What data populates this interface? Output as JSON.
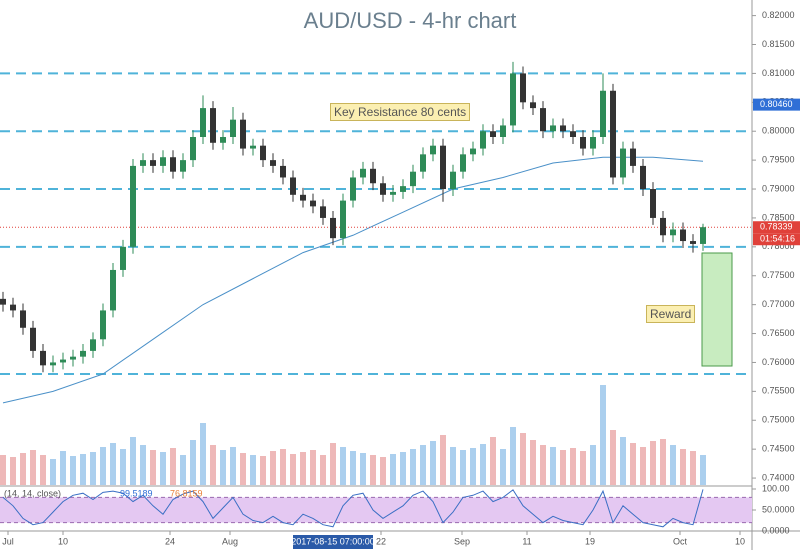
{
  "chart_data": {
    "type": "candlestick",
    "title": "AUD/USD - 4-hr chart",
    "candles": [
      [
        0.771,
        0.7722,
        0.7688,
        0.77
      ],
      [
        0.77,
        0.7712,
        0.7678,
        0.769
      ],
      [
        0.769,
        0.7702,
        0.7648,
        0.766
      ],
      [
        0.766,
        0.7672,
        0.7608,
        0.762
      ],
      [
        0.762,
        0.7632,
        0.7583,
        0.7595
      ],
      [
        0.7595,
        0.7612,
        0.7583,
        0.76
      ],
      [
        0.76,
        0.7617,
        0.7588,
        0.7605
      ],
      [
        0.7605,
        0.7622,
        0.7593,
        0.761
      ],
      [
        0.761,
        0.7632,
        0.7598,
        0.762
      ],
      [
        0.762,
        0.7652,
        0.7608,
        0.764
      ],
      [
        0.764,
        0.7702,
        0.7628,
        0.769
      ],
      [
        0.769,
        0.7772,
        0.7678,
        0.776
      ],
      [
        0.776,
        0.7812,
        0.7748,
        0.78
      ],
      [
        0.78,
        0.7952,
        0.7788,
        0.794
      ],
      [
        0.794,
        0.7962,
        0.7928,
        0.795
      ],
      [
        0.795,
        0.7962,
        0.7928,
        0.794
      ],
      [
        0.794,
        0.7967,
        0.7928,
        0.7955
      ],
      [
        0.7955,
        0.7967,
        0.7918,
        0.793
      ],
      [
        0.793,
        0.7962,
        0.7918,
        0.795
      ],
      [
        0.795,
        0.8002,
        0.7938,
        0.799
      ],
      [
        0.799,
        0.8062,
        0.7978,
        0.804
      ],
      [
        0.804,
        0.8052,
        0.7968,
        0.798
      ],
      [
        0.798,
        0.8002,
        0.7968,
        0.799
      ],
      [
        0.799,
        0.8042,
        0.7978,
        0.802
      ],
      [
        0.802,
        0.8032,
        0.7958,
        0.797
      ],
      [
        0.797,
        0.7987,
        0.7958,
        0.7975
      ],
      [
        0.7975,
        0.7987,
        0.7938,
        0.795
      ],
      [
        0.795,
        0.7962,
        0.7928,
        0.794
      ],
      [
        0.794,
        0.7952,
        0.7908,
        0.792
      ],
      [
        0.792,
        0.7932,
        0.7878,
        0.789
      ],
      [
        0.789,
        0.7902,
        0.7868,
        0.788
      ],
      [
        0.788,
        0.7892,
        0.7858,
        0.787
      ],
      [
        0.787,
        0.7882,
        0.7838,
        0.785
      ],
      [
        0.785,
        0.7862,
        0.7803,
        0.7815
      ],
      [
        0.7815,
        0.7892,
        0.7803,
        0.788
      ],
      [
        0.788,
        0.7932,
        0.7868,
        0.792
      ],
      [
        0.792,
        0.7947,
        0.7908,
        0.7935
      ],
      [
        0.7935,
        0.7947,
        0.7898,
        0.791
      ],
      [
        0.791,
        0.7922,
        0.7878,
        0.789
      ],
      [
        0.789,
        0.7907,
        0.7878,
        0.7895
      ],
      [
        0.7895,
        0.7917,
        0.7883,
        0.7905
      ],
      [
        0.7905,
        0.7942,
        0.7893,
        0.793
      ],
      [
        0.793,
        0.7972,
        0.7918,
        0.796
      ],
      [
        0.796,
        0.7987,
        0.7948,
        0.7975
      ],
      [
        0.7975,
        0.7987,
        0.7878,
        0.79
      ],
      [
        0.79,
        0.7942,
        0.7888,
        0.793
      ],
      [
        0.793,
        0.7972,
        0.7918,
        0.796
      ],
      [
        0.796,
        0.7982,
        0.7948,
        0.797
      ],
      [
        0.797,
        0.8012,
        0.7958,
        0.8
      ],
      [
        0.8,
        0.8012,
        0.7978,
        0.799
      ],
      [
        0.799,
        0.8022,
        0.7978,
        0.801
      ],
      [
        0.801,
        0.812,
        0.7998,
        0.81
      ],
      [
        0.81,
        0.8112,
        0.8038,
        0.805
      ],
      [
        0.805,
        0.8062,
        0.8028,
        0.804
      ],
      [
        0.804,
        0.8052,
        0.7988,
        0.8
      ],
      [
        0.8,
        0.8022,
        0.7988,
        0.801
      ],
      [
        0.801,
        0.8022,
        0.7988,
        0.8
      ],
      [
        0.8,
        0.8012,
        0.7978,
        0.799
      ],
      [
        0.799,
        0.8002,
        0.7958,
        0.797
      ],
      [
        0.797,
        0.8002,
        0.7958,
        0.799
      ],
      [
        0.799,
        0.81,
        0.7978,
        0.807
      ],
      [
        0.807,
        0.8082,
        0.7908,
        0.792
      ],
      [
        0.792,
        0.7982,
        0.7908,
        0.797
      ],
      [
        0.797,
        0.7982,
        0.7928,
        0.794
      ],
      [
        0.794,
        0.7952,
        0.7888,
        0.79
      ],
      [
        0.79,
        0.7912,
        0.7838,
        0.785
      ],
      [
        0.785,
        0.7862,
        0.7808,
        0.782
      ],
      [
        0.782,
        0.7842,
        0.7808,
        0.783
      ],
      [
        0.783,
        0.7842,
        0.7798,
        0.781
      ],
      [
        0.781,
        0.7822,
        0.779,
        0.7805
      ],
      [
        0.7805,
        0.784,
        0.7793,
        0.7834
      ]
    ],
    "up_color": "#2e8b57",
    "down_color": "#333333",
    "xlim": [
      -0.3,
      74.9
    ],
    "xticks": [
      {
        "value": 0.5,
        "label": "Jul"
      },
      {
        "value": 6,
        "label": "10"
      },
      {
        "value": 16.7,
        "label": "24"
      },
      {
        "value": 22.7,
        "label": "Aug"
      },
      {
        "value": 37.8,
        "label": "22"
      },
      {
        "value": 45.9,
        "label": "Sep"
      },
      {
        "value": 52.4,
        "label": "11"
      },
      {
        "value": 58.7,
        "label": "19"
      },
      {
        "value": 67.7,
        "label": "Oct"
      },
      {
        "value": 73.7,
        "label": "10"
      }
    ],
    "crosshair_x": {
      "value": 33,
      "label": "2017-08-15 07:00:00"
    },
    "ylim": [
      0.7388,
      0.8227
    ],
    "yticks": [
      {
        "value": 0.74,
        "label": "0.74000"
      },
      {
        "value": 0.745,
        "label": "0.74500"
      },
      {
        "value": 0.75,
        "label": "0.75000"
      },
      {
        "value": 0.755,
        "label": "0.75500"
      },
      {
        "value": 0.76,
        "label": "0.76000"
      },
      {
        "value": 0.765,
        "label": "0.76500"
      },
      {
        "value": 0.77,
        "label": "0.77000"
      },
      {
        "value": 0.775,
        "label": "0.77500"
      },
      {
        "value": 0.78,
        "label": "0.78000"
      },
      {
        "value": 0.785,
        "label": "0.78500"
      },
      {
        "value": 0.79,
        "label": "0.79000"
      },
      {
        "value": 0.795,
        "label": "0.79500"
      },
      {
        "value": 0.8,
        "label": "0.80000"
      },
      {
        "value": 0.805,
        "label": "0.80500"
      },
      {
        "value": 0.81,
        "label": "0.81000"
      },
      {
        "value": 0.815,
        "label": "0.81500"
      },
      {
        "value": 0.82,
        "label": "0.82000"
      }
    ],
    "levels": [
      0.81,
      0.8,
      0.79,
      0.78,
      0.758
    ],
    "level_color": "#4fb3d9",
    "price_labels": [
      {
        "value": 0.8046,
        "label": "0.80460",
        "color": "#2f6fd6"
      },
      {
        "value": 0.78339,
        "label": "0.78339",
        "color": "#e0413a"
      }
    ],
    "countdown": "01:54:16",
    "ma": {
      "color": "#4a90c8",
      "x": [
        0,
        5,
        10,
        15,
        20,
        25,
        30,
        35,
        40,
        45,
        50,
        55,
        60,
        65,
        70
      ],
      "values": [
        0.753,
        0.755,
        0.758,
        0.764,
        0.77,
        0.7745,
        0.779,
        0.782,
        0.786,
        0.79,
        0.792,
        0.7945,
        0.7955,
        0.7955,
        0.7948
      ]
    },
    "volume": {
      "ylim": [
        0,
        150
      ],
      "values": [
        30,
        28,
        32,
        35,
        30,
        26,
        34,
        29,
        31,
        33,
        38,
        42,
        36,
        48,
        40,
        35,
        33,
        37,
        30,
        45,
        62,
        40,
        35,
        38,
        32,
        30,
        29,
        34,
        36,
        31,
        33,
        35,
        30,
        42,
        38,
        34,
        32,
        30,
        28,
        31,
        33,
        36,
        40,
        44,
        50,
        38,
        35,
        37,
        41,
        48,
        36,
        58,
        52,
        45,
        40,
        38,
        35,
        37,
        34,
        40,
        100,
        55,
        48,
        42,
        38,
        44,
        46,
        40,
        36,
        34,
        30
      ]
    },
    "oscillator": {
      "label": "(14, 14, close)",
      "readouts": [
        {
          "text": "99.5189",
          "color": "#2f6fd6"
        },
        {
          "text": "76.8159",
          "color": "#e8803a"
        }
      ],
      "ylim": [
        0,
        100
      ],
      "yticks": [
        {
          "value": 100,
          "label": "100.00"
        },
        {
          "value": 50,
          "label": "50.0000"
        },
        {
          "value": 0,
          "label": "0.0000"
        }
      ],
      "bands": [
        20,
        80
      ],
      "color": "#3a6fc4",
      "values": [
        80,
        60,
        30,
        15,
        20,
        45,
        70,
        85,
        90,
        75,
        92,
        95,
        90,
        70,
        85,
        60,
        40,
        75,
        88,
        95,
        70,
        30,
        55,
        80,
        40,
        25,
        20,
        35,
        20,
        15,
        40,
        30,
        15,
        10,
        60,
        85,
        90,
        50,
        30,
        45,
        60,
        85,
        95,
        70,
        20,
        45,
        80,
        85,
        95,
        70,
        80,
        98,
        60,
        40,
        20,
        35,
        25,
        20,
        15,
        50,
        95,
        20,
        60,
        40,
        20,
        15,
        10,
        30,
        20,
        15,
        99
      ]
    }
  },
  "annotations": {
    "resistance": "Key Resistance 80 cents",
    "reward": "Reward"
  }
}
